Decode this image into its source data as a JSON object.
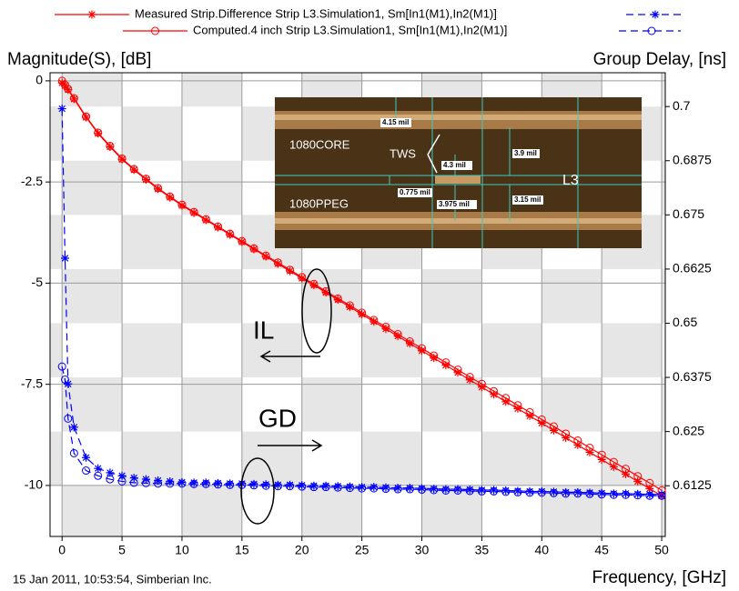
{
  "chart_data": {
    "type": "line",
    "y_label": "Magnitude(S), [dB]",
    "y2_label": "Group Delay, [ns]",
    "x_label": "Frequency, [GHz]",
    "footer": "15 Jan 2011, 10:53:54, Simberian Inc.",
    "xlim": [
      -1,
      50.3
    ],
    "xticks": [
      0,
      5,
      10,
      15,
      20,
      25,
      30,
      35,
      40,
      45,
      50
    ],
    "ylim": [
      -11.26,
      0.2
    ],
    "yticks": [
      0,
      -2.5,
      -5,
      -7.5,
      -10
    ],
    "y2lim": [
      0.6008,
      0.7078
    ],
    "y2ticks": [
      0.6125,
      0.625,
      0.6375,
      0.65,
      0.6625,
      0.675,
      0.6875,
      0.7
    ],
    "grid": true,
    "x": [
      0,
      0.25,
      0.5,
      1,
      2,
      3,
      4,
      5,
      6,
      7,
      8,
      9,
      10,
      11,
      12,
      13,
      14,
      15,
      16,
      17,
      18,
      19,
      20,
      21,
      22,
      23,
      24,
      25,
      26,
      27,
      28,
      29,
      30,
      31,
      32,
      33,
      34,
      35,
      36,
      37,
      38,
      39,
      40,
      41,
      42,
      43,
      44,
      45,
      46,
      47,
      48,
      49,
      50
    ],
    "series": [
      {
        "name": "Measured Strip.Difference Strip L3.Simulation1, Sm[In1(M1),In2(M1)]",
        "color": "#ff0000",
        "gd_color": "#0000ff",
        "marker": "asterisk",
        "values": [
          -0.05,
          -0.12,
          -0.22,
          -0.45,
          -0.9,
          -1.3,
          -1.63,
          -1.94,
          -2.2,
          -2.44,
          -2.67,
          -2.88,
          -3.08,
          -3.26,
          -3.44,
          -3.62,
          -3.8,
          -3.98,
          -4.16,
          -4.34,
          -4.52,
          -4.7,
          -4.88,
          -5.05,
          -5.23,
          -5.41,
          -5.59,
          -5.77,
          -5.95,
          -6.13,
          -6.31,
          -6.49,
          -6.67,
          -6.85,
          -7.03,
          -7.21,
          -7.39,
          -7.57,
          -7.75,
          -7.93,
          -8.1,
          -8.28,
          -8.46,
          -8.64,
          -8.82,
          -9.0,
          -9.18,
          -9.36,
          -9.54,
          -9.72,
          -9.9,
          -10.08,
          -10.26
        ],
        "gd_values": [
          0.6995,
          0.665,
          0.636,
          0.626,
          0.619,
          0.6165,
          0.6155,
          0.6148,
          0.6143,
          0.614,
          0.6137,
          0.6135,
          0.6133,
          0.6132,
          0.6132,
          0.6131,
          0.613,
          0.613,
          0.6129,
          0.6128,
          0.6127,
          0.6127,
          0.6126,
          0.6125,
          0.6125,
          0.6124,
          0.6123,
          0.6122,
          0.6122,
          0.6121,
          0.612,
          0.612,
          0.6119,
          0.6118,
          0.6117,
          0.6117,
          0.6116,
          0.6115,
          0.6115,
          0.6114,
          0.6113,
          0.6112,
          0.6112,
          0.6111,
          0.611,
          0.611,
          0.6109,
          0.6108,
          0.6107,
          0.6107,
          0.6106,
          0.6105,
          0.6105
        ]
      },
      {
        "name": "Computed.4 inch Strip L3.Simulation1, Sm[In1(M1),In2(M1)]",
        "color": "#ff0000",
        "gd_color": "#0000ff",
        "marker": "circle",
        "values": [
          0,
          -0.1,
          -0.2,
          -0.43,
          -0.88,
          -1.28,
          -1.61,
          -1.92,
          -2.18,
          -2.42,
          -2.65,
          -2.86,
          -3.06,
          -3.24,
          -3.42,
          -3.6,
          -3.78,
          -3.96,
          -4.14,
          -4.32,
          -4.49,
          -4.67,
          -4.85,
          -5.02,
          -5.2,
          -5.38,
          -5.55,
          -5.73,
          -5.91,
          -6.08,
          -6.26,
          -6.44,
          -6.61,
          -6.79,
          -6.96,
          -7.14,
          -7.32,
          -7.49,
          -7.67,
          -7.84,
          -8.02,
          -8.19,
          -8.37,
          -8.54,
          -8.72,
          -8.89,
          -9.07,
          -9.24,
          -9.42,
          -9.59,
          -9.77,
          -9.94,
          -10.12
        ],
        "gd_values": [
          0.64,
          0.637,
          0.628,
          0.62,
          0.616,
          0.6148,
          0.614,
          0.6135,
          0.6132,
          0.6131,
          0.613,
          0.613,
          0.613,
          0.6129,
          0.6129,
          0.6128,
          0.6127,
          0.6127,
          0.6126,
          0.6125,
          0.6124,
          0.6124,
          0.6123,
          0.6122,
          0.6122,
          0.6121,
          0.612,
          0.6119,
          0.6119,
          0.6118,
          0.6117,
          0.6117,
          0.6116,
          0.6115,
          0.6114,
          0.6114,
          0.6113,
          0.6112,
          0.6112,
          0.6111,
          0.611,
          0.6109,
          0.6109,
          0.6108,
          0.6107,
          0.6107,
          0.6106,
          0.6105,
          0.6104,
          0.6104,
          0.6103,
          0.6102,
          0.6102
        ]
      }
    ],
    "annotations": {
      "il": "IL",
      "gd": "GD"
    },
    "inset": {
      "core": "1080CORE",
      "ppeg": "1080PPEG",
      "tws": "TWS",
      "layer": "L3",
      "m1": "4.15 mil",
      "m2": "4.3 mil",
      "m3": "3.9 mil",
      "m4": "0.775 mil",
      "m5": "3.975 mil",
      "m6": "3.15 mil"
    }
  }
}
